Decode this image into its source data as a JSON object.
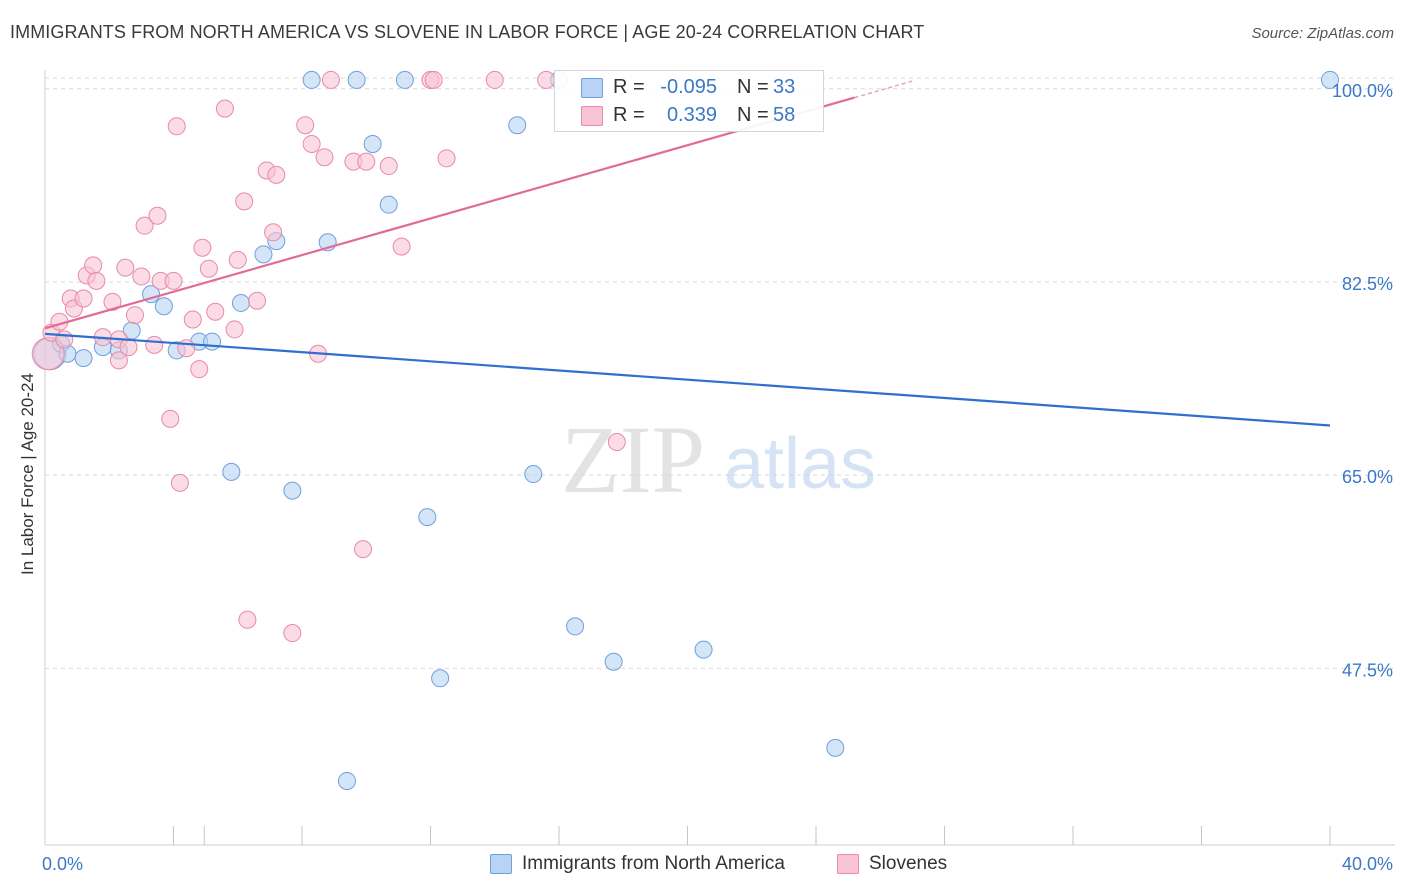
{
  "title": "IMMIGRANTS FROM NORTH AMERICA VS SLOVENE IN LABOR FORCE | AGE 20-24 CORRELATION CHART",
  "source": "Source: ZipAtlas.com",
  "watermark": {
    "zip": "ZIP",
    "atlas": "atlas"
  },
  "legend": {
    "r_label": "R =",
    "n_label": "N =",
    "series": [
      {
        "name": "Immigrants from North America",
        "r": "-0.095",
        "n": "33",
        "fill": "#b8d3f3",
        "stroke": "#6f9fdc"
      },
      {
        "name": "Slovenes",
        "r": "0.339",
        "n": "58",
        "fill": "#f8c3d4",
        "stroke": "#e88aa8"
      }
    ]
  },
  "colors": {
    "blue_line": "#2f6fcf",
    "pink_line": "#e26b95",
    "axis_text": "#3b78c8",
    "grid": "#d9d9d9"
  },
  "chart_data": {
    "type": "scatter",
    "xlabel": "",
    "ylabel": "In Labor Force | Age 20-24",
    "xlim": [
      0,
      40
    ],
    "ylim": [
      31.5,
      101.7
    ],
    "x_tick_labels": [
      {
        "value": 0,
        "label": "0.0%"
      },
      {
        "value": 40,
        "label": "40.0%"
      }
    ],
    "y_ticks": [
      {
        "value": 100,
        "label": "100.0%"
      },
      {
        "value": 82.5,
        "label": "82.5%"
      },
      {
        "value": 65,
        "label": "65.0%"
      },
      {
        "value": 47.5,
        "label": "47.5%"
      }
    ],
    "series": [
      {
        "name": "Immigrants from North America",
        "trend": {
          "x": [
            0,
            40
          ],
          "y": [
            77.8,
            69.5
          ]
        },
        "points": [
          {
            "x": 0.15,
            "y": 76.0,
            "big": true
          },
          {
            "x": 0.5,
            "y": 76.9
          },
          {
            "x": 0.7,
            "y": 76.0
          },
          {
            "x": 1.2,
            "y": 75.6
          },
          {
            "x": 1.8,
            "y": 76.6
          },
          {
            "x": 2.3,
            "y": 76.3
          },
          {
            "x": 2.7,
            "y": 78.1
          },
          {
            "x": 3.3,
            "y": 81.4
          },
          {
            "x": 3.7,
            "y": 80.3
          },
          {
            "x": 4.1,
            "y": 76.3
          },
          {
            "x": 4.8,
            "y": 77.1
          },
          {
            "x": 5.2,
            "y": 77.1
          },
          {
            "x": 5.8,
            "y": 65.3
          },
          {
            "x": 6.1,
            "y": 80.6
          },
          {
            "x": 6.8,
            "y": 85.0
          },
          {
            "x": 7.2,
            "y": 86.2
          },
          {
            "x": 7.7,
            "y": 63.6
          },
          {
            "x": 8.3,
            "y": 100.8
          },
          {
            "x": 8.8,
            "y": 86.1
          },
          {
            "x": 9.4,
            "y": 37.3
          },
          {
            "x": 9.7,
            "y": 100.8
          },
          {
            "x": 10.2,
            "y": 95.0
          },
          {
            "x": 10.7,
            "y": 89.5
          },
          {
            "x": 11.2,
            "y": 100.8
          },
          {
            "x": 11.9,
            "y": 61.2
          },
          {
            "x": 12.3,
            "y": 46.6
          },
          {
            "x": 14.7,
            "y": 96.7
          },
          {
            "x": 15.2,
            "y": 65.1
          },
          {
            "x": 16.0,
            "y": 100.8
          },
          {
            "x": 16.5,
            "y": 51.3
          },
          {
            "x": 17.7,
            "y": 48.1
          },
          {
            "x": 20.5,
            "y": 49.2
          },
          {
            "x": 24.6,
            "y": 40.3
          },
          {
            "x": 40.0,
            "y": 100.8
          }
        ]
      },
      {
        "name": "Slovenes",
        "trend": {
          "x": [
            0,
            25.2
          ],
          "y": [
            78.3,
            99.2
          ]
        },
        "trend_dashed": {
          "x": [
            25.2,
            27.0
          ],
          "y": [
            99.2,
            100.7
          ]
        },
        "points": [
          {
            "x": 0.1,
            "y": 76.0,
            "big": true
          },
          {
            "x": 0.2,
            "y": 77.9
          },
          {
            "x": 0.45,
            "y": 78.9
          },
          {
            "x": 0.6,
            "y": 77.3
          },
          {
            "x": 0.8,
            "y": 81.0
          },
          {
            "x": 0.9,
            "y": 80.1
          },
          {
            "x": 1.2,
            "y": 81.0
          },
          {
            "x": 1.3,
            "y": 83.1
          },
          {
            "x": 1.5,
            "y": 84.0
          },
          {
            "x": 1.6,
            "y": 82.6
          },
          {
            "x": 1.8,
            "y": 77.5
          },
          {
            "x": 2.1,
            "y": 80.7
          },
          {
            "x": 2.3,
            "y": 77.3
          },
          {
            "x": 2.3,
            "y": 75.4
          },
          {
            "x": 2.5,
            "y": 83.8
          },
          {
            "x": 2.6,
            "y": 76.6
          },
          {
            "x": 2.8,
            "y": 79.5
          },
          {
            "x": 3.0,
            "y": 83.0
          },
          {
            "x": 3.1,
            "y": 87.6
          },
          {
            "x": 3.4,
            "y": 76.8
          },
          {
            "x": 3.5,
            "y": 88.5
          },
          {
            "x": 3.6,
            "y": 82.6
          },
          {
            "x": 3.9,
            "y": 70.1
          },
          {
            "x": 4.0,
            "y": 82.6
          },
          {
            "x": 4.1,
            "y": 96.6
          },
          {
            "x": 4.2,
            "y": 64.3
          },
          {
            "x": 4.4,
            "y": 76.5
          },
          {
            "x": 4.6,
            "y": 79.1
          },
          {
            "x": 4.8,
            "y": 74.6
          },
          {
            "x": 4.9,
            "y": 85.6
          },
          {
            "x": 5.1,
            "y": 83.7
          },
          {
            "x": 5.3,
            "y": 79.8
          },
          {
            "x": 5.6,
            "y": 98.2
          },
          {
            "x": 5.9,
            "y": 78.2
          },
          {
            "x": 6.0,
            "y": 84.5
          },
          {
            "x": 6.2,
            "y": 89.8
          },
          {
            "x": 6.3,
            "y": 51.9
          },
          {
            "x": 6.6,
            "y": 80.8
          },
          {
            "x": 6.9,
            "y": 92.6
          },
          {
            "x": 7.1,
            "y": 87.0
          },
          {
            "x": 7.2,
            "y": 92.2
          },
          {
            "x": 7.7,
            "y": 50.7
          },
          {
            "x": 8.1,
            "y": 96.7
          },
          {
            "x": 8.3,
            "y": 95.0
          },
          {
            "x": 8.5,
            "y": 76.0
          },
          {
            "x": 8.7,
            "y": 93.8
          },
          {
            "x": 8.9,
            "y": 100.8
          },
          {
            "x": 9.6,
            "y": 93.4
          },
          {
            "x": 9.9,
            "y": 58.3
          },
          {
            "x": 10.0,
            "y": 93.4
          },
          {
            "x": 10.7,
            "y": 93.0
          },
          {
            "x": 11.1,
            "y": 85.7
          },
          {
            "x": 12.0,
            "y": 100.8
          },
          {
            "x": 12.1,
            "y": 100.8
          },
          {
            "x": 12.5,
            "y": 93.7
          },
          {
            "x": 14.0,
            "y": 100.8
          },
          {
            "x": 15.6,
            "y": 100.8
          },
          {
            "x": 17.8,
            "y": 68.0
          }
        ]
      }
    ]
  }
}
